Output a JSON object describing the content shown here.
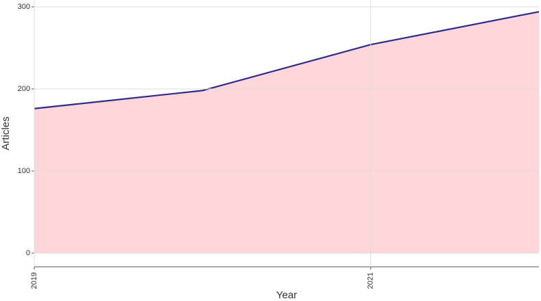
{
  "chart_data": {
    "type": "area",
    "x_label": "Year",
    "y_label": "Articles",
    "x": [
      2019,
      2020,
      2021,
      2022
    ],
    "series": [
      {
        "name": "Articles",
        "values": [
          176,
          198,
          254,
          294
        ],
        "color": "#2e2a8a",
        "fill": "#ffd6d9"
      }
    ],
    "xlim": [
      2019,
      2022
    ],
    "xticks": [
      2019,
      2021
    ],
    "ylim": [
      -16.7,
      308.3
    ],
    "yticks": [
      0,
      100,
      200,
      300
    ],
    "grid": true
  }
}
